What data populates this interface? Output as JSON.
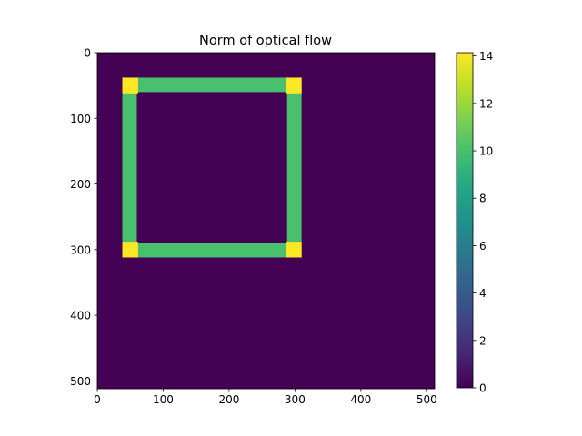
{
  "chart_data": {
    "type": "heatmap",
    "title": "Norm of optical flow",
    "xlabel": "",
    "ylabel": "",
    "image_size": [
      512,
      512
    ],
    "xlim": [
      0,
      512
    ],
    "ylim": [
      512,
      0
    ],
    "x_ticks": [
      0,
      100,
      200,
      300,
      400,
      500
    ],
    "y_ticks": [
      0,
      100,
      200,
      300,
      400,
      500
    ],
    "background_value": 0,
    "regions": [
      {
        "name": "top edge",
        "x": [
          38,
          310
        ],
        "y": [
          38,
          60
        ],
        "value": 10
      },
      {
        "name": "bottom edge",
        "x": [
          38,
          310
        ],
        "y": [
          290,
          312
        ],
        "value": 10
      },
      {
        "name": "left edge",
        "x": [
          38,
          60
        ],
        "y": [
          38,
          312
        ],
        "value": 10
      },
      {
        "name": "right edge",
        "x": [
          288,
          310
        ],
        "y": [
          38,
          312
        ],
        "value": 10
      },
      {
        "name": "top-left corner",
        "x": [
          38,
          62
        ],
        "y": [
          38,
          62
        ],
        "value": 14.14
      },
      {
        "name": "top-right corner",
        "x": [
          286,
          310
        ],
        "y": [
          38,
          62
        ],
        "value": 14.14
      },
      {
        "name": "bottom-left corner",
        "x": [
          38,
          62
        ],
        "y": [
          288,
          312
        ],
        "value": 14.14
      },
      {
        "name": "bottom-right corner",
        "x": [
          286,
          310
        ],
        "y": [
          288,
          312
        ],
        "value": 14.14
      }
    ],
    "colorbar": {
      "colormap": "viridis",
      "range": [
        0,
        14.14
      ],
      "ticks": [
        0,
        2,
        4,
        6,
        8,
        10,
        12,
        14
      ]
    },
    "grid": false,
    "legend": "none"
  }
}
